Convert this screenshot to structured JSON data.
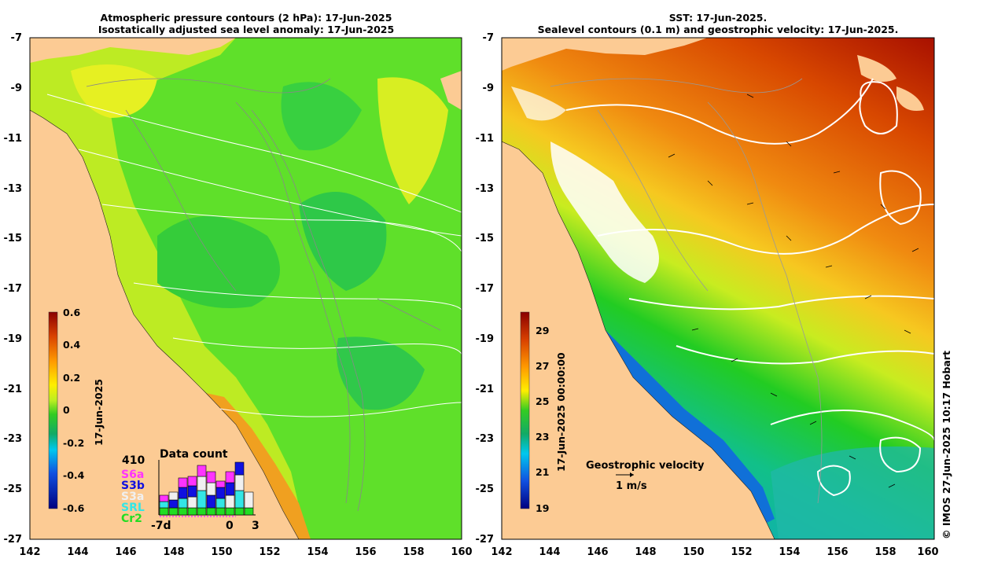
{
  "left_panel": {
    "title_line1": "Atmospheric pressure contours (2 hPa): 17-Jun-2025",
    "title_line2": "Isostatically adjusted sea level anomaly: 17-Jun-2025",
    "x_ticks": [
      "142",
      "144",
      "146",
      "148",
      "150",
      "152",
      "154",
      "156",
      "158",
      "160"
    ],
    "y_ticks": [
      "-7",
      "-9",
      "-11",
      "-13",
      "-15",
      "-17",
      "-19",
      "-21",
      "-23",
      "-25",
      "-27"
    ],
    "colorbar": {
      "ticks": [
        "0.6",
        "0.4",
        "0.2",
        "0",
        "-0.2",
        "-0.4",
        "-0.6"
      ],
      "date_label": "17-Jun-2025"
    },
    "data_count": {
      "title": "Data count",
      "total": "410",
      "missions": [
        {
          "name": "S6a",
          "color": "#ff33ff"
        },
        {
          "name": "S3b",
          "color": "#1010e0"
        },
        {
          "name": "S3a",
          "color": "#f0f0f0"
        },
        {
          "name": "SRL",
          "color": "#33e6e6"
        },
        {
          "name": "Cr2",
          "color": "#22dd22"
        }
      ],
      "x_labels": [
        "-7d",
        "0",
        "3"
      ]
    }
  },
  "right_panel": {
    "title_line1": "SST: 17-Jun-2025.",
    "title_line2": "Sealevel contours (0.1 m) and geostrophic velocity: 17-Jun-2025.",
    "x_ticks": [
      "142",
      "144",
      "146",
      "148",
      "150",
      "152",
      "154",
      "156",
      "158",
      "160"
    ],
    "y_ticks": [
      "-7",
      "-9",
      "-11",
      "-13",
      "-15",
      "-17",
      "-19",
      "-21",
      "-23",
      "-25",
      "-27"
    ],
    "colorbar": {
      "ticks": [
        "29",
        "27",
        "25",
        "23",
        "21",
        "19"
      ],
      "date_label": "17-Jun-2025 00:00:00"
    },
    "velocity_legend": {
      "title": "Geostrophic velocity",
      "scale": "1 m/s"
    }
  },
  "credit": "© IMOS 27-Jun-2025 10:17 Hobart",
  "colors": {
    "land": "#fccb94",
    "ssla_mid": "#44dd22",
    "sst_warm": "#c02000"
  }
}
